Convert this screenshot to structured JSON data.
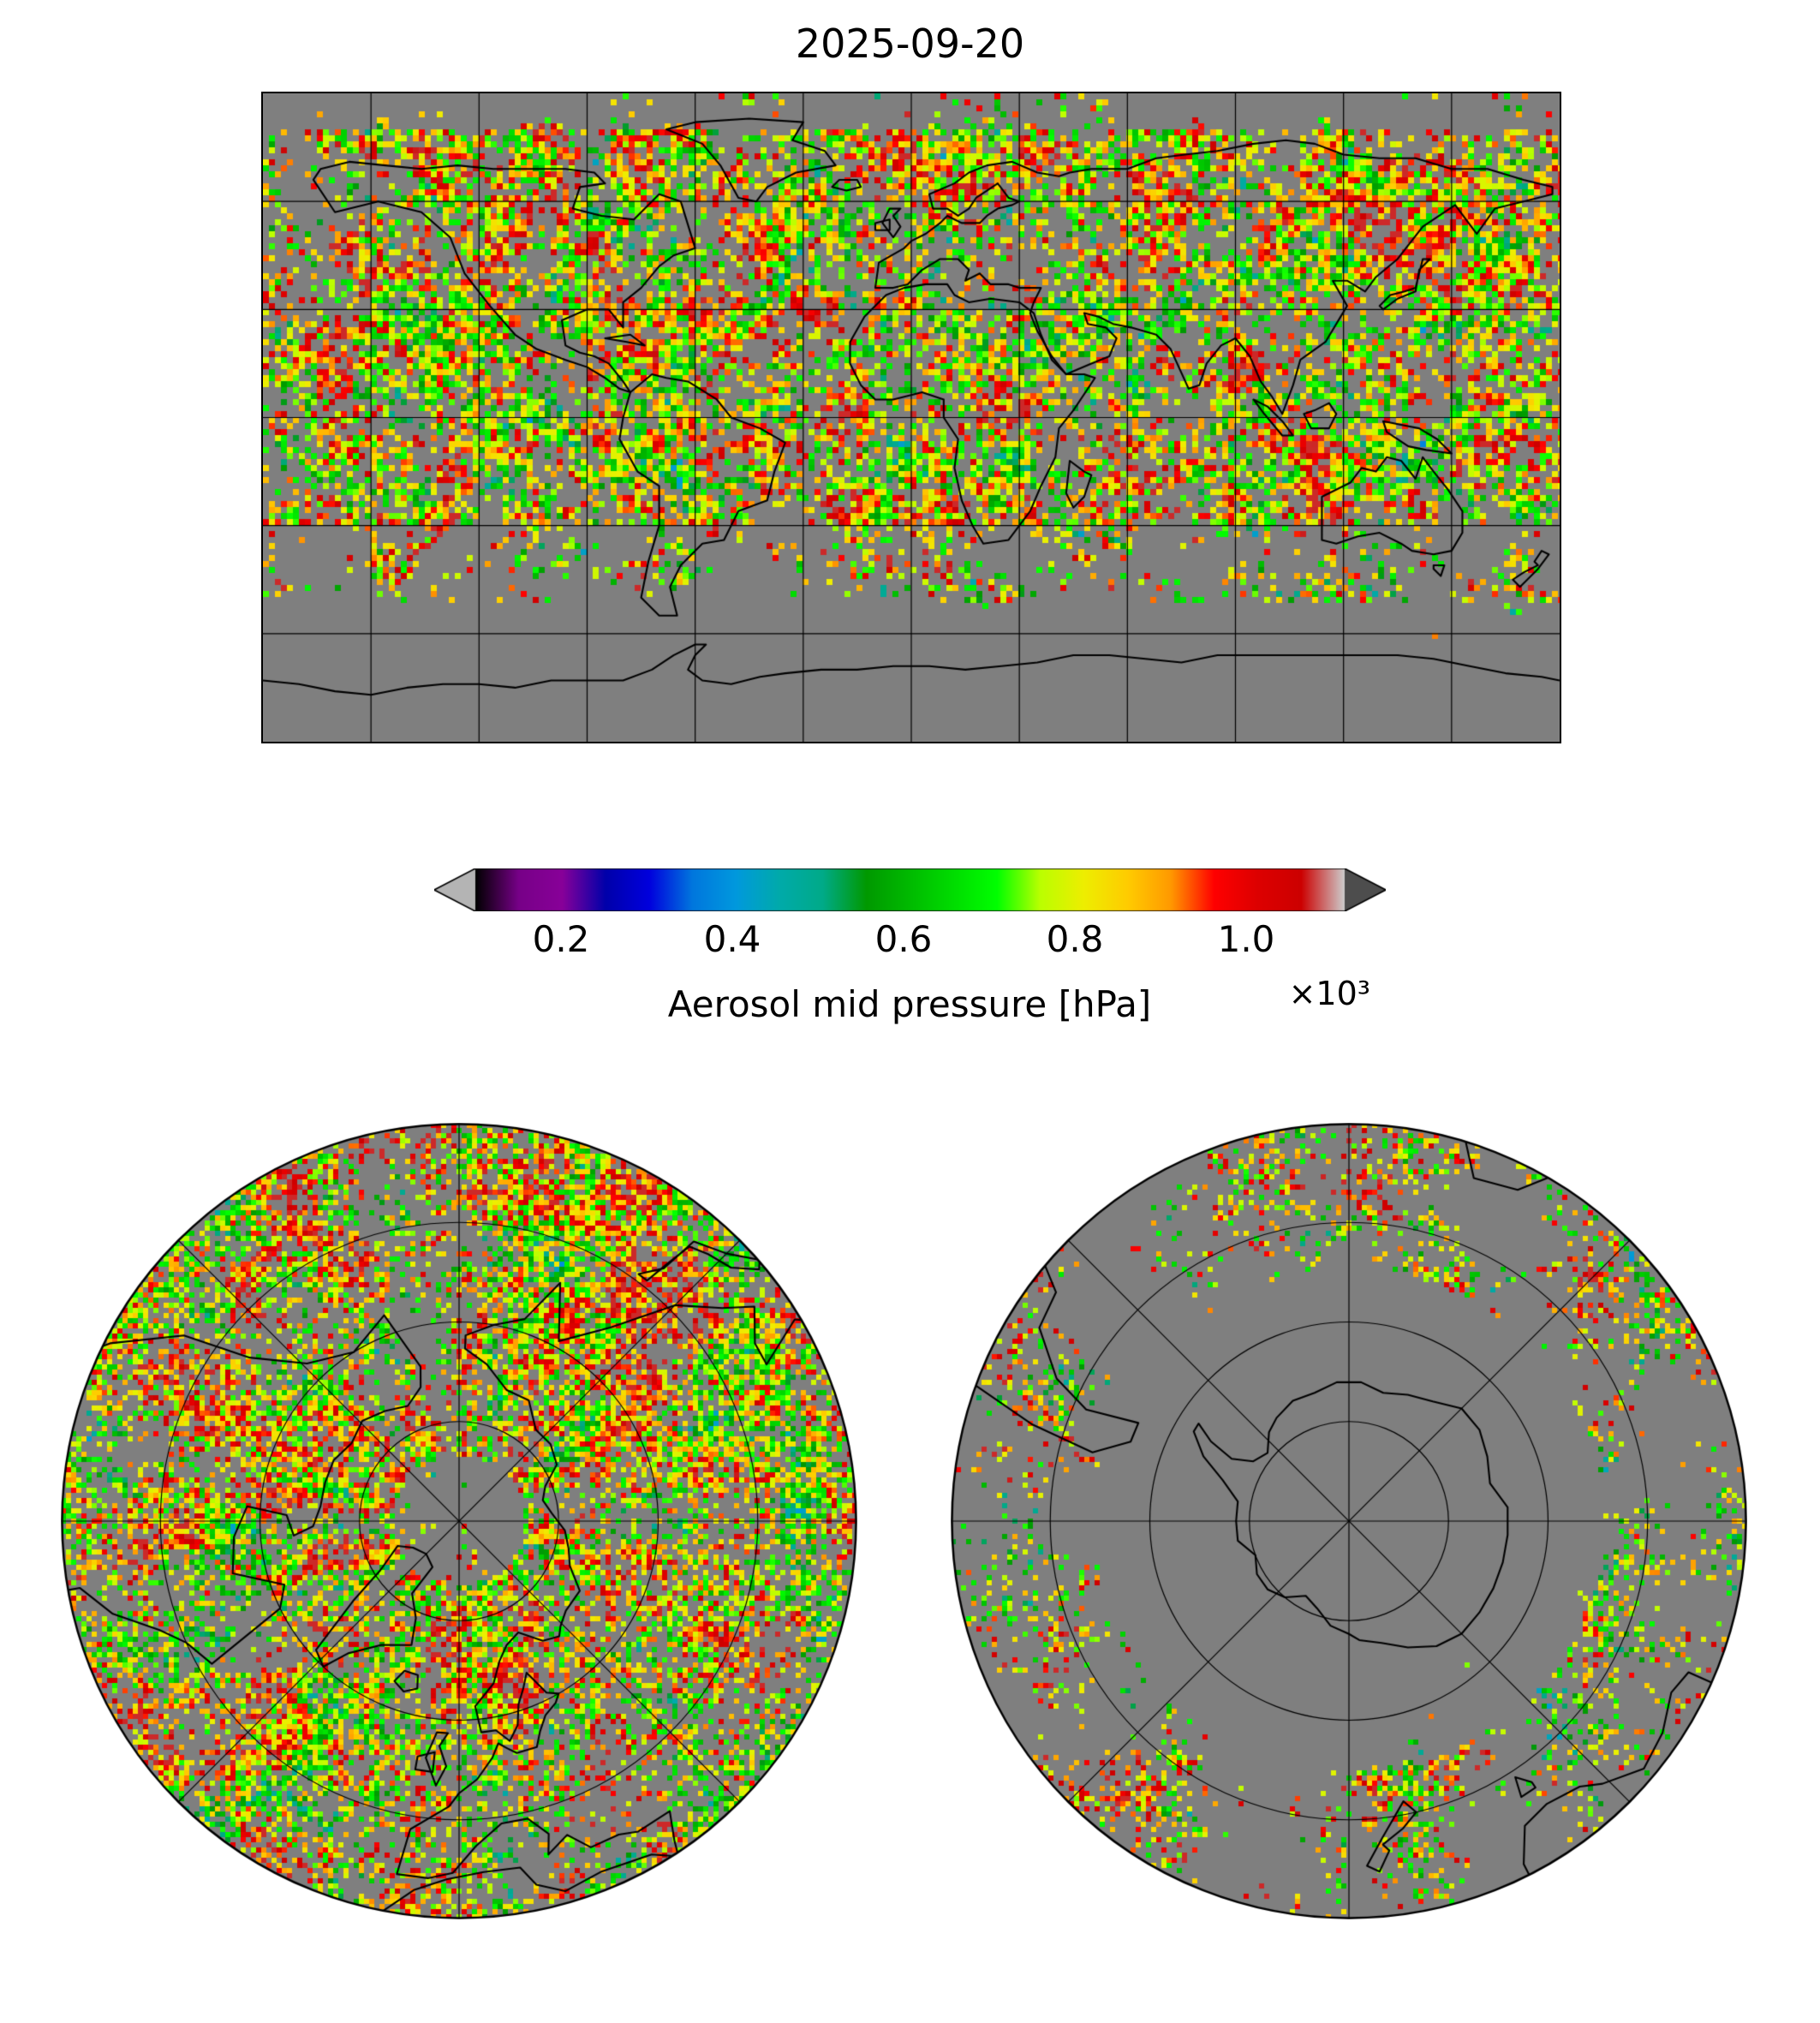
{
  "title": "2025-09-20",
  "colors": {
    "figure_bg": "#ffffff",
    "map_bg": "#7f7f7f",
    "coastline": "#000000",
    "graticule": "#000000",
    "text": "#000000"
  },
  "chart_data": {
    "type": "heatmap",
    "title": "2025-09-20",
    "variable": "Aerosol mid pressure",
    "units": "hPa",
    "colormap": "nipy_spectral",
    "missing_data_color": "#7f7f7f",
    "colorbar": {
      "label": "Aerosol mid pressure [hPa]",
      "offset_label": "×10³",
      "orientation": "horizontal",
      "extend": "both",
      "under_color": "#b4b4b4",
      "over_color": "#4d4d4d",
      "vmin": 0.1,
      "vmax": 1.115,
      "ticks": [
        {
          "label": "0.2",
          "value": 0.2
        },
        {
          "label": "0.4",
          "value": 0.4
        },
        {
          "label": "0.6",
          "value": 0.6
        },
        {
          "label": "0.8",
          "value": 0.8
        },
        {
          "label": "1.0",
          "value": 1.0
        }
      ]
    },
    "panels": [
      {
        "name": "global-map",
        "projection": "equirectangular",
        "lon_range": [
          -180,
          180
        ],
        "lat_range": [
          -90,
          90
        ],
        "graticule_step_deg": 30
      },
      {
        "name": "north-polar-map",
        "projection": "north-polar",
        "boundary_lat": 30,
        "lat_circles_deg": [
          45,
          60,
          75
        ],
        "meridian_step_deg": 45
      },
      {
        "name": "south-polar-map",
        "projection": "south-polar",
        "boundary_lat": -30,
        "lat_circles_deg": [
          -45,
          -60,
          -75
        ],
        "meridian_step_deg": 45
      }
    ]
  }
}
